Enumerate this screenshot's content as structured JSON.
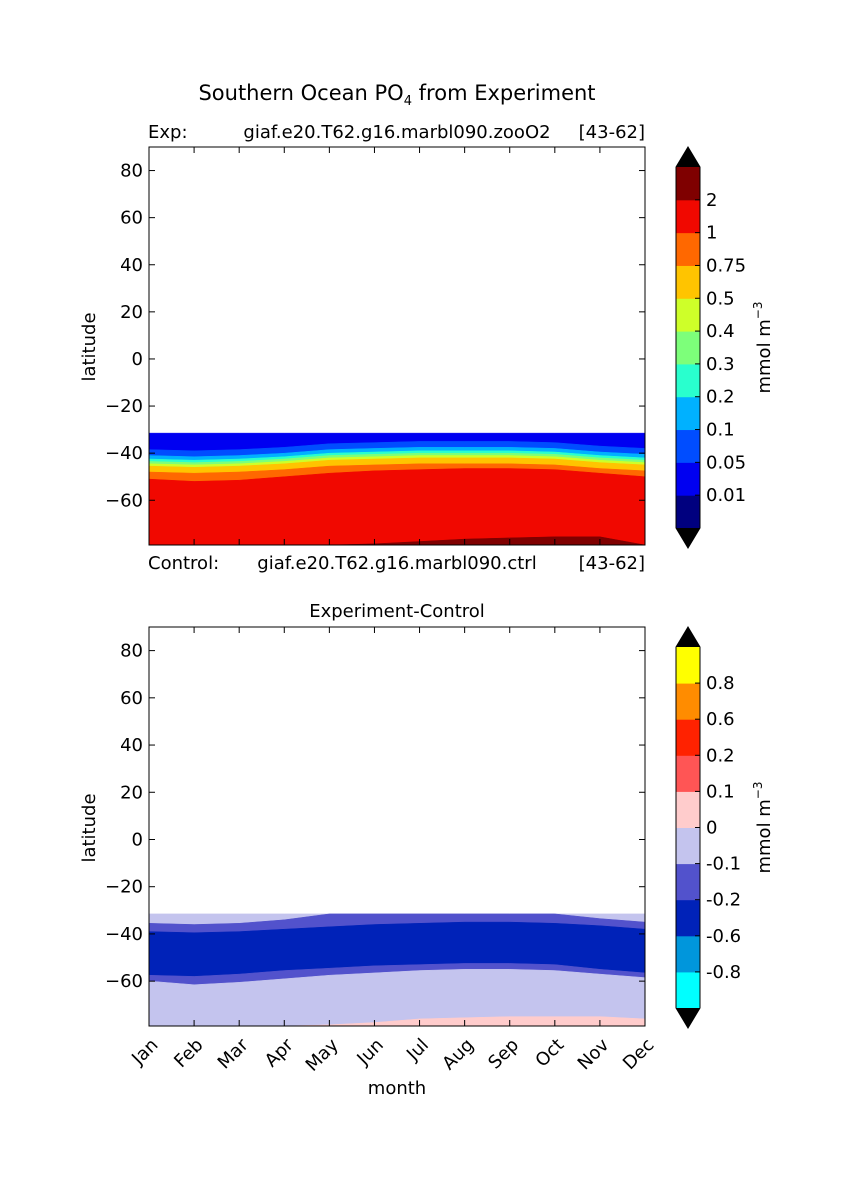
{
  "figure": {
    "title_main": "Southern Ocean PO",
    "title_sub": "4",
    "title_rest": " from Experiment"
  },
  "chart_data": [
    {
      "type": "heatmap",
      "plot": "filled-contour",
      "exp_prefix": "Exp:",
      "exp_name": "giaf.e20.T62.g16.marbl090.zooO2",
      "exp_years": "[43-62]",
      "control_prefix": "Control:",
      "control_name": "giaf.e20.T62.g16.marbl090.ctrl",
      "control_years": "[43-62]",
      "ylabel": "latitude",
      "ylim": [
        -79,
        90
      ],
      "yticks": [
        80,
        60,
        40,
        20,
        0,
        -20,
        -40,
        -60
      ],
      "ytick_labels": [
        "80",
        "60",
        "40",
        "20",
        "0",
        "−20",
        "−40",
        "−60"
      ],
      "xlim": [
        0,
        11
      ],
      "data_lat_max": -31.5,
      "colorbar": {
        "label_main": "mmol m",
        "label_sup": "−3",
        "extend": "both",
        "extend_low_color": "#000000",
        "extend_high_color": "#000000",
        "levels": [
          "0.01",
          "0.05",
          "0.1",
          "0.2",
          "0.3",
          "0.4",
          "0.5",
          "0.75",
          "1",
          "2"
        ],
        "colors": [
          "#00007f",
          "#0000f1",
          "#004dff",
          "#00b1ff",
          "#29ffce",
          "#7dff7a",
          "#ceff29",
          "#ffc400",
          "#ff6800",
          "#f10800",
          "#7f0000"
        ]
      },
      "bands": [
        {
          "color": "#0000f1",
          "top": [
            -31.5,
            -31.5,
            -31.5,
            -31.5,
            -31.5,
            -31.5,
            -31.5,
            -31.5,
            -31.5,
            -31.5,
            -31.5,
            -31.5
          ]
        },
        {
          "color": "#004dff",
          "top": [
            -38.5,
            -39,
            -38.5,
            -37.5,
            -36,
            -35.5,
            -35,
            -35,
            -35,
            -35.5,
            -37,
            -38
          ]
        },
        {
          "color": "#00b1ff",
          "top": [
            -41,
            -41.5,
            -41,
            -40,
            -38.5,
            -38,
            -37.5,
            -37.5,
            -37.5,
            -38,
            -39.5,
            -40.5
          ]
        },
        {
          "color": "#29ffce",
          "top": [
            -42.5,
            -43,
            -42.5,
            -41.5,
            -40,
            -39.5,
            -39,
            -39,
            -39,
            -39.5,
            -41,
            -42
          ]
        },
        {
          "color": "#7dff7a",
          "top": [
            -43.5,
            -44,
            -43.5,
            -42.5,
            -41,
            -40.5,
            -40,
            -40,
            -40,
            -40.5,
            -42,
            -43
          ]
        },
        {
          "color": "#ceff29",
          "top": [
            -44.5,
            -45,
            -44.5,
            -43.5,
            -42,
            -41.5,
            -41,
            -41,
            -41,
            -41.5,
            -43,
            -44
          ]
        },
        {
          "color": "#ffc400",
          "top": [
            -45.5,
            -46,
            -45.5,
            -44.5,
            -43,
            -42.5,
            -42,
            -42,
            -42,
            -42.5,
            -44,
            -45
          ]
        },
        {
          "color": "#ff6800",
          "top": [
            -48,
            -48.5,
            -48,
            -47,
            -45.5,
            -45,
            -44.5,
            -44.5,
            -44.5,
            -45,
            -46.5,
            -47.5
          ]
        },
        {
          "color": "#f10800",
          "top": [
            -51,
            -52,
            -51.5,
            -50,
            -48.5,
            -47.5,
            -47,
            -46.5,
            -46.5,
            -47,
            -48.5,
            -50
          ]
        },
        {
          "color": "#7f0000",
          "top": [
            -79,
            -79,
            -79,
            -79,
            -79,
            -78.5,
            -77.5,
            -76.5,
            -76,
            -75.5,
            -75.5,
            -79
          ]
        }
      ]
    },
    {
      "type": "heatmap",
      "plot": "filled-contour",
      "title": "Experiment-Control",
      "xlabel": "month",
      "ylabel": "latitude",
      "ylim": [
        -79,
        90
      ],
      "yticks": [
        80,
        60,
        40,
        20,
        0,
        -20,
        -40,
        -60
      ],
      "ytick_labels": [
        "80",
        "60",
        "40",
        "20",
        "0",
        "−20",
        "−40",
        "−60"
      ],
      "xlim": [
        0,
        11
      ],
      "categories": [
        "Jan",
        "Feb",
        "Mar",
        "Apr",
        "May",
        "Jun",
        "Jul",
        "Aug",
        "Sep",
        "Oct",
        "Nov",
        "Dec"
      ],
      "data_lat_max": -31.5,
      "colorbar": {
        "label_main": "mmol m",
        "label_sup": "−3",
        "extend": "both",
        "extend_low_color": "#000000",
        "extend_high_color": "#000000",
        "levels": [
          "-0.8",
          "-0.6",
          "-0.2",
          "-0.1",
          "0",
          "0.1",
          "0.2",
          "0.6",
          "0.8"
        ],
        "colors": [
          "#00ffff",
          "#0096dc",
          "#0022b8",
          "#5252cc",
          "#c4c4ee",
          "#ffcccc",
          "#ff5555",
          "#ff2200",
          "#ff8c00",
          "#ffff00"
        ]
      },
      "bands": [
        {
          "color": "#c4c4ee",
          "top": [
            -31.5,
            -31.5,
            -31.5,
            -31.5,
            -31.5,
            -31.5,
            -31.5,
            -31.5,
            -31.5,
            -31.5,
            -31.5,
            -31.5
          ]
        },
        {
          "color": "#5252cc",
          "top": [
            -35.5,
            -36,
            -35.5,
            -34,
            -31.5,
            -31.5,
            -31.5,
            -31.5,
            -31.5,
            -31.5,
            -33.5,
            -35
          ]
        },
        {
          "color": "#0022b8",
          "top": [
            -39,
            -39.5,
            -39,
            -38,
            -37,
            -36,
            -35.5,
            -35,
            -35,
            -35.5,
            -36.5,
            -38
          ]
        },
        {
          "color": "#5252cc",
          "top": [
            -57.5,
            -58,
            -57,
            -55.5,
            -54.5,
            -53.5,
            -53,
            -52.5,
            -52.5,
            -53,
            -55,
            -56.5
          ]
        },
        {
          "color": "#c4c4ee",
          "top": [
            -60,
            -61.5,
            -60.5,
            -59,
            -57.5,
            -56.5,
            -55.5,
            -55,
            -55,
            -55.5,
            -57,
            -58.5
          ]
        },
        {
          "color": "#ffcccc",
          "top": [
            -79,
            -79,
            -79,
            -79,
            -78.5,
            -77.5,
            -76,
            -75.5,
            -75,
            -75,
            -75,
            -76
          ]
        }
      ]
    }
  ]
}
